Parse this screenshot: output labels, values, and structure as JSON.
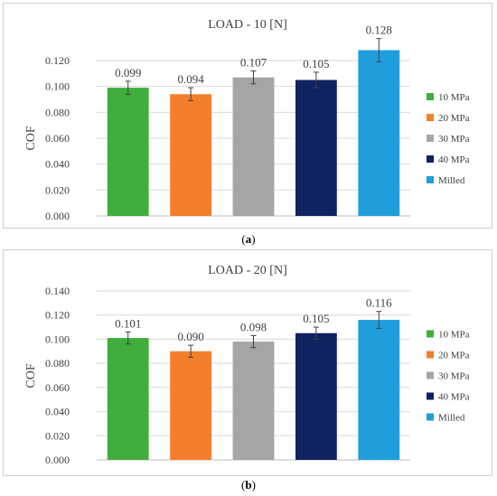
{
  "captions": {
    "a": "a",
    "b": "b"
  },
  "colors": {
    "10 MPa": "#3fae3c",
    "20 MPa": "#f47f2a",
    "30 MPa": "#a5a5a5",
    "40 MPa": "#0f2262",
    "Milled": "#1f9edb",
    "grid": "#d9d9d9",
    "errorbar": "#404040"
  },
  "chart_data": [
    {
      "type": "bar",
      "title": "LOAD - 10 [N]",
      "ylabel": "COF",
      "xlabel": "",
      "categories": [
        "10 MPa",
        "20 MPa",
        "30 MPa",
        "40 MPa",
        "Milled"
      ],
      "values": [
        0.099,
        0.094,
        0.107,
        0.105,
        0.128
      ],
      "value_labels": [
        "0.099",
        "0.094",
        "0.107",
        "0.105",
        "0.128"
      ],
      "errors": [
        0.005,
        0.005,
        0.005,
        0.006,
        0.009
      ],
      "ylim": [
        0,
        0.12
      ],
      "yticks": [
        "0.000",
        "0.020",
        "0.040",
        "0.060",
        "0.080",
        "0.100",
        "0.120"
      ],
      "grid": true,
      "legend_position": "right"
    },
    {
      "type": "bar",
      "title": "LOAD - 20 [N]",
      "ylabel": "COF",
      "xlabel": "",
      "categories": [
        "10 MPa",
        "20 MPa",
        "30 MPa",
        "40 MPa",
        "Milled"
      ],
      "values": [
        0.101,
        0.09,
        0.098,
        0.105,
        0.116
      ],
      "value_labels": [
        "0.101",
        "0.090",
        "0.098",
        "0.105",
        "0.116"
      ],
      "errors": [
        0.005,
        0.005,
        0.005,
        0.005,
        0.007
      ],
      "ylim": [
        0,
        0.14
      ],
      "yticks": [
        "0.000",
        "0.020",
        "0.040",
        "0.060",
        "0.080",
        "0.100",
        "0.120",
        "0.140"
      ],
      "grid": true,
      "legend_position": "right"
    }
  ]
}
